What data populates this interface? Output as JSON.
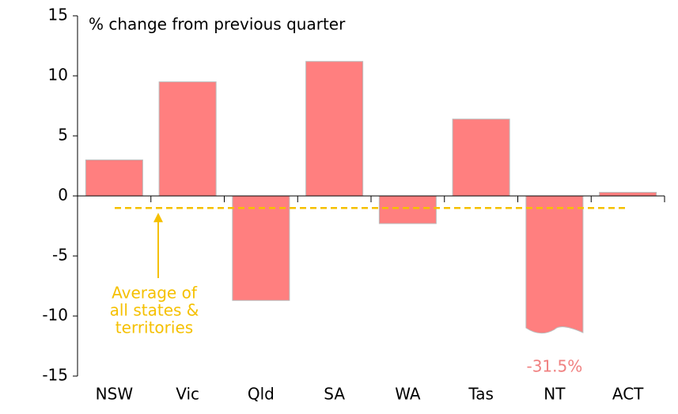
{
  "chart_data": {
    "type": "bar",
    "title": "% change from previous quarter",
    "categories": [
      "NSW",
      "Vic",
      "Qld",
      "SA",
      "WA",
      "Tas",
      "NT",
      "ACT"
    ],
    "values": [
      3.0,
      9.5,
      -8.7,
      11.2,
      -2.3,
      6.4,
      -31.5,
      0.3
    ],
    "value_labels": [
      null,
      null,
      null,
      null,
      null,
      null,
      "-31.5%",
      null
    ],
    "color": "#ff7f7f",
    "ylim": [
      -15,
      15
    ],
    "yticks": [
      -15,
      -10,
      -5,
      0,
      5,
      10,
      15
    ],
    "average": -1.0,
    "average_color": "#f5c000",
    "annotation": [
      "Average of",
      "all states &",
      "territories"
    ]
  }
}
